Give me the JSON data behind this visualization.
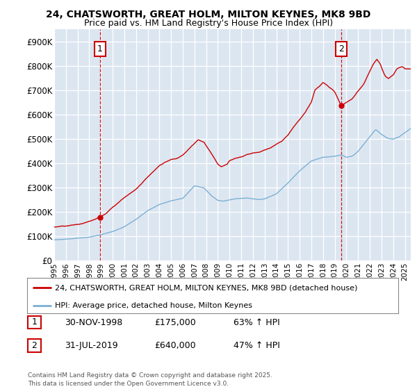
{
  "title1": "24, CHATSWORTH, GREAT HOLM, MILTON KEYNES, MK8 9BD",
  "title2": "Price paid vs. HM Land Registry's House Price Index (HPI)",
  "ylim": [
    0,
    950000
  ],
  "yticks": [
    0,
    100000,
    200000,
    300000,
    400000,
    500000,
    600000,
    700000,
    800000,
    900000
  ],
  "ytick_labels": [
    "£0",
    "£100K",
    "£200K",
    "£300K",
    "£400K",
    "£500K",
    "£600K",
    "£700K",
    "£800K",
    "£900K"
  ],
  "xmin_year": 1995.0,
  "xmax_year": 2025.5,
  "xtick_years": [
    1995,
    1996,
    1997,
    1998,
    1999,
    2000,
    2001,
    2002,
    2003,
    2004,
    2005,
    2006,
    2007,
    2008,
    2009,
    2010,
    2011,
    2012,
    2013,
    2014,
    2015,
    2016,
    2017,
    2018,
    2019,
    2020,
    2021,
    2022,
    2023,
    2024,
    2025
  ],
  "red_color": "#cc0000",
  "blue_color": "#7ab0d4",
  "bg_color": "#dce6f1",
  "grid_color": "#ffffff",
  "ann1_x": 1998.92,
  "ann2_x": 2019.58,
  "legend_red": "24, CHATSWORTH, GREAT HOLM, MILTON KEYNES, MK8 9BD (detached house)",
  "legend_blue": "HPI: Average price, detached house, Milton Keynes",
  "table_rows": [
    {
      "num": "1",
      "date": "30-NOV-1998",
      "price": "£175,000",
      "pct": "63% ↑ HPI"
    },
    {
      "num": "2",
      "date": "31-JUL-2019",
      "price": "£640,000",
      "pct": "47% ↑ HPI"
    }
  ],
  "footer": "Contains HM Land Registry data © Crown copyright and database right 2025.\nThis data is licensed under the Open Government Licence v3.0."
}
